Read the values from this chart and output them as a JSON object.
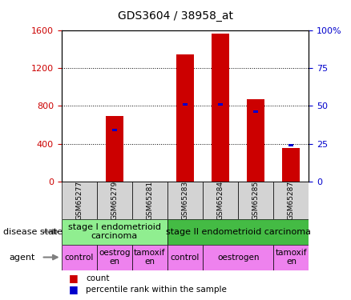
{
  "title": "GDS3604 / 38958_at",
  "samples": [
    "GSM65277",
    "GSM65279",
    "GSM65281",
    "GSM65283",
    "GSM65284",
    "GSM65285",
    "GSM65287"
  ],
  "counts": [
    0,
    690,
    0,
    1340,
    1560,
    870,
    350
  ],
  "percentile_ranks_pct": [
    0,
    34,
    0,
    51,
    51,
    46,
    24
  ],
  "ylim_left": [
    0,
    1600
  ],
  "ylim_right": [
    0,
    100
  ],
  "yticks_left": [
    0,
    400,
    800,
    1200,
    1600
  ],
  "yticks_right": [
    0,
    25,
    50,
    75,
    100
  ],
  "bar_color": "#cc0000",
  "pct_color": "#0000cc",
  "disease_state_groups": [
    {
      "label": "stage I endometrioid\ncarcinoma",
      "start": 0,
      "end": 3,
      "color": "#90ee90"
    },
    {
      "label": "stage II endometrioid carcinoma",
      "start": 3,
      "end": 7,
      "color": "#44bb44"
    }
  ],
  "agent_groups": [
    {
      "label": "control",
      "start": 0,
      "end": 1,
      "color": "#ee82ee"
    },
    {
      "label": "oestrog\nen",
      "start": 1,
      "end": 2,
      "color": "#ee82ee"
    },
    {
      "label": "tamoxif\nen",
      "start": 2,
      "end": 3,
      "color": "#ee82ee"
    },
    {
      "label": "control",
      "start": 3,
      "end": 4,
      "color": "#ee82ee"
    },
    {
      "label": "oestrogen",
      "start": 4,
      "end": 6,
      "color": "#ee82ee"
    },
    {
      "label": "tamoxif\nen",
      "start": 6,
      "end": 7,
      "color": "#ee82ee"
    }
  ],
  "tick_label_color_left": "#cc0000",
  "tick_label_color_right": "#0000cc",
  "bg_color": "#ffffff",
  "annotation_row1": "disease state",
  "annotation_row2": "agent",
  "legend_count": "count",
  "legend_pct": "percentile rank within the sample",
  "bar_width": 0.5
}
